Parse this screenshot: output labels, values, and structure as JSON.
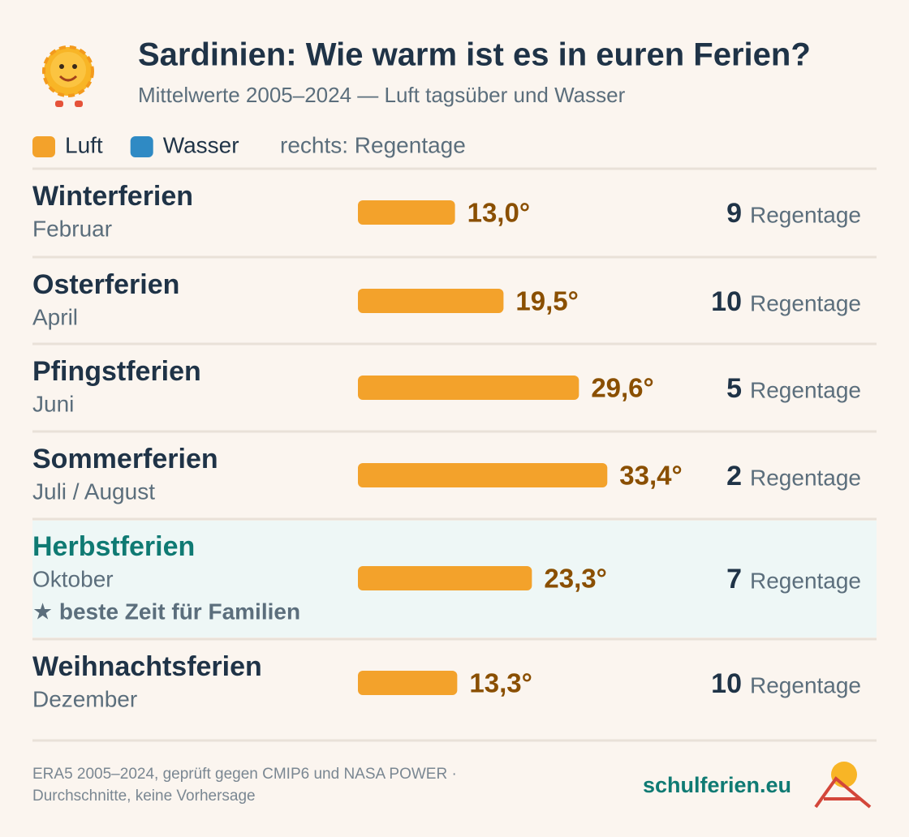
{
  "chart_data": {
    "type": "bar",
    "title": "Sardinien: Wie warm ist es in euren Ferien?",
    "subtitle": "Mittelwerte 2005–2024 — Luft tagsüber und Wasser",
    "legend_note": "rechts: Regentage",
    "categories": [
      "Winterferien",
      "Osterferien",
      "Pfingstferien",
      "Sommerferien",
      "Herbstferien",
      "Weihnachtsferien"
    ],
    "category_notes": [
      "Februar",
      "April",
      "Juni",
      "Juli / August",
      "Oktober",
      "Dezember"
    ],
    "highlight": {
      "index": 4,
      "note": "★ beste Zeit für Familien",
      "color": "#0f7a73"
    },
    "series": [
      {
        "name": "Luft",
        "color": "#f3a22b",
        "values": [
          13.0,
          19.5,
          29.6,
          33.4,
          23.3,
          13.3
        ],
        "value_labels": [
          "13,0°",
          "19,5°",
          "29,6°",
          "33,4°",
          "23,3°",
          "13,3°"
        ]
      },
      {
        "name": "Wasser",
        "color": "#2f8ac4",
        "values": [
          null,
          null,
          null,
          null,
          null,
          null
        ]
      }
    ],
    "rain_days": [
      9,
      10,
      5,
      2,
      7,
      10
    ],
    "rain_unit": "Regentage",
    "source": [
      "ERA5 2005–2024, geprüft gegen CMIP6 und NASA POWER ·",
      "Durchschnitte, keine Vorhersage"
    ],
    "brand": "schulferien.eu"
  }
}
